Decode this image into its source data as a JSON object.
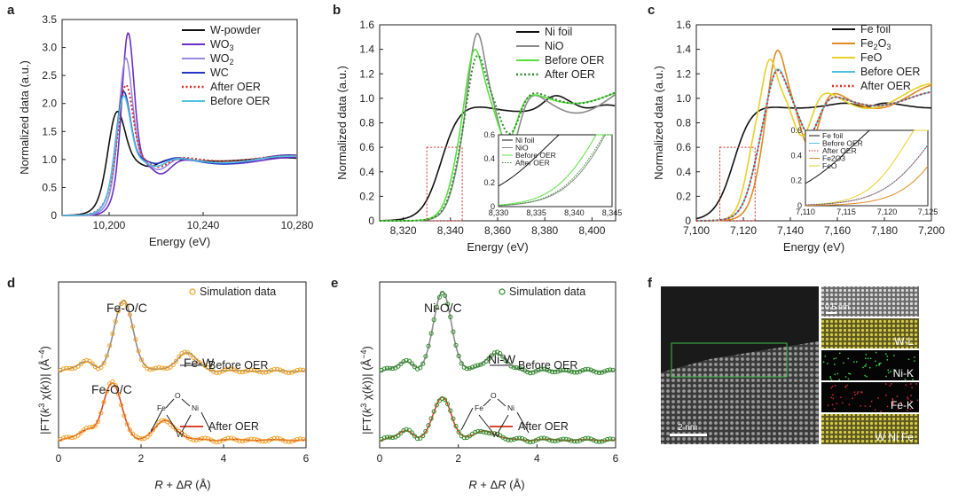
{
  "chart_data": [
    {
      "panel": "a",
      "type": "line",
      "xlabel": "Energy (eV)",
      "ylabel": "Normalized data (a.u.)",
      "xlim": [
        10180,
        10280
      ],
      "ylim": [
        -0.1,
        3.5
      ],
      "xticks": [
        10200,
        10240,
        10280
      ],
      "xtick_labels": [
        "10,200",
        "10,240",
        "10,280"
      ],
      "yticks": [
        0,
        0.5,
        1.0,
        1.5,
        2.0,
        2.5,
        3.0,
        3.5
      ],
      "ytick_labels": [
        "0",
        "0.5",
        "1.0",
        "1.5",
        "2.0",
        "2.5",
        "3.0",
        "3.5"
      ],
      "legend_position": "top-right",
      "series": [
        {
          "name": "W-powder",
          "color": "#111111",
          "dash": "solid",
          "edge": 10199,
          "w": 3,
          "peak": 2.05,
          "peak_x": 10203,
          "dip": 0.15,
          "post": 1.0,
          "osc": 0.03
        },
        {
          "name": "WO3",
          "label_main": "WO",
          "label_sub": "3",
          "color": "#6a2fc4",
          "dash": "solid",
          "edge": 10203,
          "w": 2.2,
          "peak": 3.35,
          "peak_x": 10208,
          "dip": 0.3,
          "post": 0.98,
          "osc": 0.06
        },
        {
          "name": "WO2",
          "label_main": "WO",
          "label_sub": "2",
          "color": "#9a88e0",
          "dash": "solid",
          "edge": 10202,
          "w": 2.4,
          "peak": 2.92,
          "peak_x": 10207,
          "dip": 0.25,
          "post": 1.0,
          "osc": 0.07
        },
        {
          "name": "WC",
          "color": "#2233c8",
          "dash": "solid",
          "edge": 10201,
          "w": 2.5,
          "peak": 2.32,
          "peak_x": 10206,
          "dip": 0.15,
          "post": 1.0,
          "osc": 0.08
        },
        {
          "name": "After OER",
          "color": "#d62d22",
          "dash": "dot",
          "edge": 10201,
          "w": 2.6,
          "peak": 2.42,
          "peak_x": 10207,
          "dip": 0.2,
          "post": 1.02,
          "osc": 0.05
        },
        {
          "name": "Before OER",
          "color": "#4fc0e0",
          "dash": "solid",
          "edge": 10201,
          "w": 2.5,
          "peak": 2.25,
          "peak_x": 10206,
          "dip": 0.18,
          "post": 1.0,
          "osc": 0.06
        }
      ]
    },
    {
      "panel": "b",
      "type": "line",
      "xlabel": "Energy (eV)",
      "ylabel": "Normalized data (a.u.)",
      "xlim": [
        8310,
        8410
      ],
      "ylim": [
        -0.02,
        1.6
      ],
      "xticks": [
        8320,
        8340,
        8360,
        8380,
        8400
      ],
      "xtick_labels": [
        "8,320",
        "8,340",
        "8,360",
        "8,380",
        "8,400"
      ],
      "yticks": [
        0,
        0.2,
        0.4,
        0.6,
        0.8,
        1.0,
        1.2,
        1.4,
        1.6
      ],
      "ytick_labels": [
        "0",
        "0.2",
        "0.4",
        "0.6",
        "0.8",
        "1.0",
        "1.2",
        "1.4",
        "1.6"
      ],
      "legend_position": "top-right",
      "series": [
        {
          "name": "Ni foil",
          "color": "#111111",
          "dash": "solid",
          "edge": 8336,
          "w": 4,
          "peak": 1.02,
          "peak_x": 8384,
          "dip": 0.05,
          "post": 0.93,
          "osc": 0.04
        },
        {
          "name": "NiO",
          "color": "#8a8a8a",
          "dash": "solid",
          "edge": 8343,
          "w": 2.8,
          "peak": 1.58,
          "peak_x": 8351,
          "dip": 0.55,
          "post": 1.0,
          "osc": 0.12
        },
        {
          "name": "Before OER",
          "color": "#58e040",
          "dash": "solid",
          "edge": 8342,
          "w": 2.8,
          "peak": 1.45,
          "peak_x": 8350,
          "dip": 0.42,
          "post": 1.02,
          "osc": 0.06
        },
        {
          "name": "After OER",
          "color": "#2f8a2a",
          "dash": "dot",
          "edge": 8343,
          "w": 2.8,
          "peak": 1.4,
          "peak_x": 8351,
          "dip": 0.38,
          "post": 1.03,
          "osc": 0.07
        }
      ],
      "inset": {
        "xlim": [
          8330,
          8345
        ],
        "ylim": [
          0,
          0.6
        ],
        "xtick_labels": [
          "8,330",
          "8,335",
          "8,340",
          "8,345"
        ],
        "ytick_labels": [
          "0",
          "0.2",
          "0.4",
          "0.6"
        ],
        "legend": [
          "Ni foil",
          "NiO",
          "Before OER",
          "After OER"
        ]
      }
    },
    {
      "panel": "c",
      "type": "line",
      "xlabel": "Energy (eV)",
      "ylabel": "Normalized data (a.u.)",
      "xlim": [
        7100,
        7200
      ],
      "ylim": [
        -0.02,
        1.6
      ],
      "xticks": [
        7100,
        7120,
        7140,
        7160,
        7180,
        7200
      ],
      "xtick_labels": [
        "7,100",
        "7,120",
        "7,140",
        "7,160",
        "7,180",
        "7,200"
      ],
      "yticks": [
        0,
        0.2,
        0.4,
        0.6,
        0.8,
        1.0,
        1.2,
        1.4,
        1.6
      ],
      "ytick_labels": [
        "0",
        "0.2",
        "0.4",
        "0.6",
        "0.8",
        "1.0",
        "1.2",
        "1.4",
        "1.6"
      ],
      "legend_position": "top-right",
      "series": [
        {
          "name": "Fe foil",
          "color": "#111111",
          "dash": "solid",
          "edge": 7116,
          "w": 4,
          "peak": 0.95,
          "peak_x": 7158,
          "dip": 0.05,
          "post": 0.95,
          "osc": 0.03
        },
        {
          "name": "Fe2O3",
          "label_main": "Fe",
          "label_sub": "2",
          "label_tail": "O",
          "label_sub2": "3",
          "color": "#e08a20",
          "dash": "solid",
          "edge": 7127,
          "w": 2.8,
          "peak": 1.46,
          "peak_x": 7134,
          "dip": 0.5,
          "post": 1.02,
          "osc": 0.1
        },
        {
          "name": "FeO",
          "color": "#e6d028",
          "dash": "solid",
          "edge": 7122,
          "w": 2.4,
          "peak": 1.34,
          "peak_x": 7131,
          "dip": 0.42,
          "post": 1.02,
          "osc": 0.1
        },
        {
          "name": "Before OER",
          "color": "#4fc0e0",
          "dash": "solid",
          "edge": 7125,
          "w": 3,
          "peak": 1.28,
          "peak_x": 7134,
          "dip": 0.35,
          "post": 1.0,
          "osc": 0.06
        },
        {
          "name": "After OER",
          "color": "#d62d22",
          "dash": "dot",
          "edge": 7125,
          "w": 3,
          "peak": 1.27,
          "peak_x": 7134,
          "dip": 0.35,
          "post": 1.0,
          "osc": 0.06
        }
      ],
      "inset": {
        "xlim": [
          7110,
          7125
        ],
        "ylim": [
          0,
          0.6
        ],
        "xtick_labels": [
          "7,110",
          "7,115",
          "7,120",
          "7,125"
        ],
        "ytick_labels": [
          "0",
          "0.2",
          "0.4",
          "0.6"
        ],
        "legend": [
          "Fe foil",
          "Before OER",
          "After OER",
          "Fe2O3",
          "FeO"
        ]
      }
    },
    {
      "panel": "d",
      "type": "line",
      "xlabel": "R + ΔR (Å)",
      "ylabel": "|FT(k³ χ(k))| (Å⁻⁴)",
      "xlim": [
        0,
        6
      ],
      "xticks": [
        0,
        2,
        4,
        6
      ],
      "xtick_labels": [
        "0",
        "2",
        "4",
        "6"
      ],
      "legend": [
        "Simulation data",
        "Before OER",
        "After OER"
      ],
      "annotations": [
        "Fe-O/C",
        "Fe-W",
        "Fe-O/C"
      ],
      "series": [
        {
          "name": "Before OER",
          "color": "#8c8c8c",
          "offset": 0.55,
          "main_peak": 1.58,
          "main_amp": 0.55,
          "second_peak": 3.1,
          "second_amp": 0.14
        },
        {
          "name": "After OER",
          "color": "#d9472a",
          "offset": 0.0,
          "main_peak": 1.3,
          "main_amp": 0.44,
          "second_peak": 2.6,
          "second_amp": 0.15
        },
        {
          "name": "Simulation data",
          "color": "#f0a020",
          "marker": "circle"
        }
      ]
    },
    {
      "panel": "e",
      "type": "line",
      "xlabel": "R + ΔR (Å)",
      "ylabel": "|FT(k³ χ(k))| (Å⁻⁴)",
      "xlim": [
        0,
        6
      ],
      "xticks": [
        0,
        2,
        4,
        6
      ],
      "xtick_labels": [
        "0",
        "2",
        "4",
        "6"
      ],
      "legend": [
        "Simulation data",
        "Before OER",
        "After OER"
      ],
      "annotations": [
        "Ni-O/C",
        "Ni-W"
      ],
      "series": [
        {
          "name": "Before OER",
          "color": "#8c8c8c",
          "offset": 0.55,
          "main_peak": 1.6,
          "main_amp": 0.62,
          "second_peak": 2.95,
          "second_amp": 0.14
        },
        {
          "name": "After OER",
          "color": "#d9472a",
          "offset": 0.0,
          "main_peak": 1.6,
          "main_amp": 0.33,
          "second_peak": 2.7,
          "second_amp": 0.07
        },
        {
          "name": "Simulation data",
          "color": "#2f8a2a",
          "marker": "circle"
        }
      ]
    }
  ],
  "labels": {
    "panel_a": "a",
    "panel_b": "b",
    "panel_c": "c",
    "panel_d": "d",
    "panel_e": "e",
    "panel_f": "f",
    "sim_data": "Simulation data",
    "before_oer": "Before OER",
    "after_oer": "After OER",
    "fe_oc": "Fe-O/C",
    "fe_w": "Fe-W",
    "ni_oc": "Ni-O/C",
    "ni_w": "Ni-W",
    "fe": "Fe",
    "ni": "Ni",
    "o": "O",
    "w": "W",
    "ylabel_ft_prefix": "|FT(",
    "ylabel_ft_k": "k",
    "ylabel_ft_sup": "3",
    "ylabel_ft_chi": " χ(",
    "ylabel_ft_k2": "k",
    "ylabel_ft_end": "))| (Å",
    "ylabel_ft_unit_sup": "−4",
    "ylabel_ft_close": ")",
    "xlabel_r": "R",
    "xlabel_plus": " + Δ",
    "xlabel_r2": "R",
    "xlabel_unit": " (Å)"
  },
  "microscopy": {
    "scale_main": "2 nm",
    "scale_inset": "0.5 nm",
    "maps": [
      "W-L",
      "Ni-K",
      "Fe-K",
      "W Ni Fe"
    ]
  }
}
